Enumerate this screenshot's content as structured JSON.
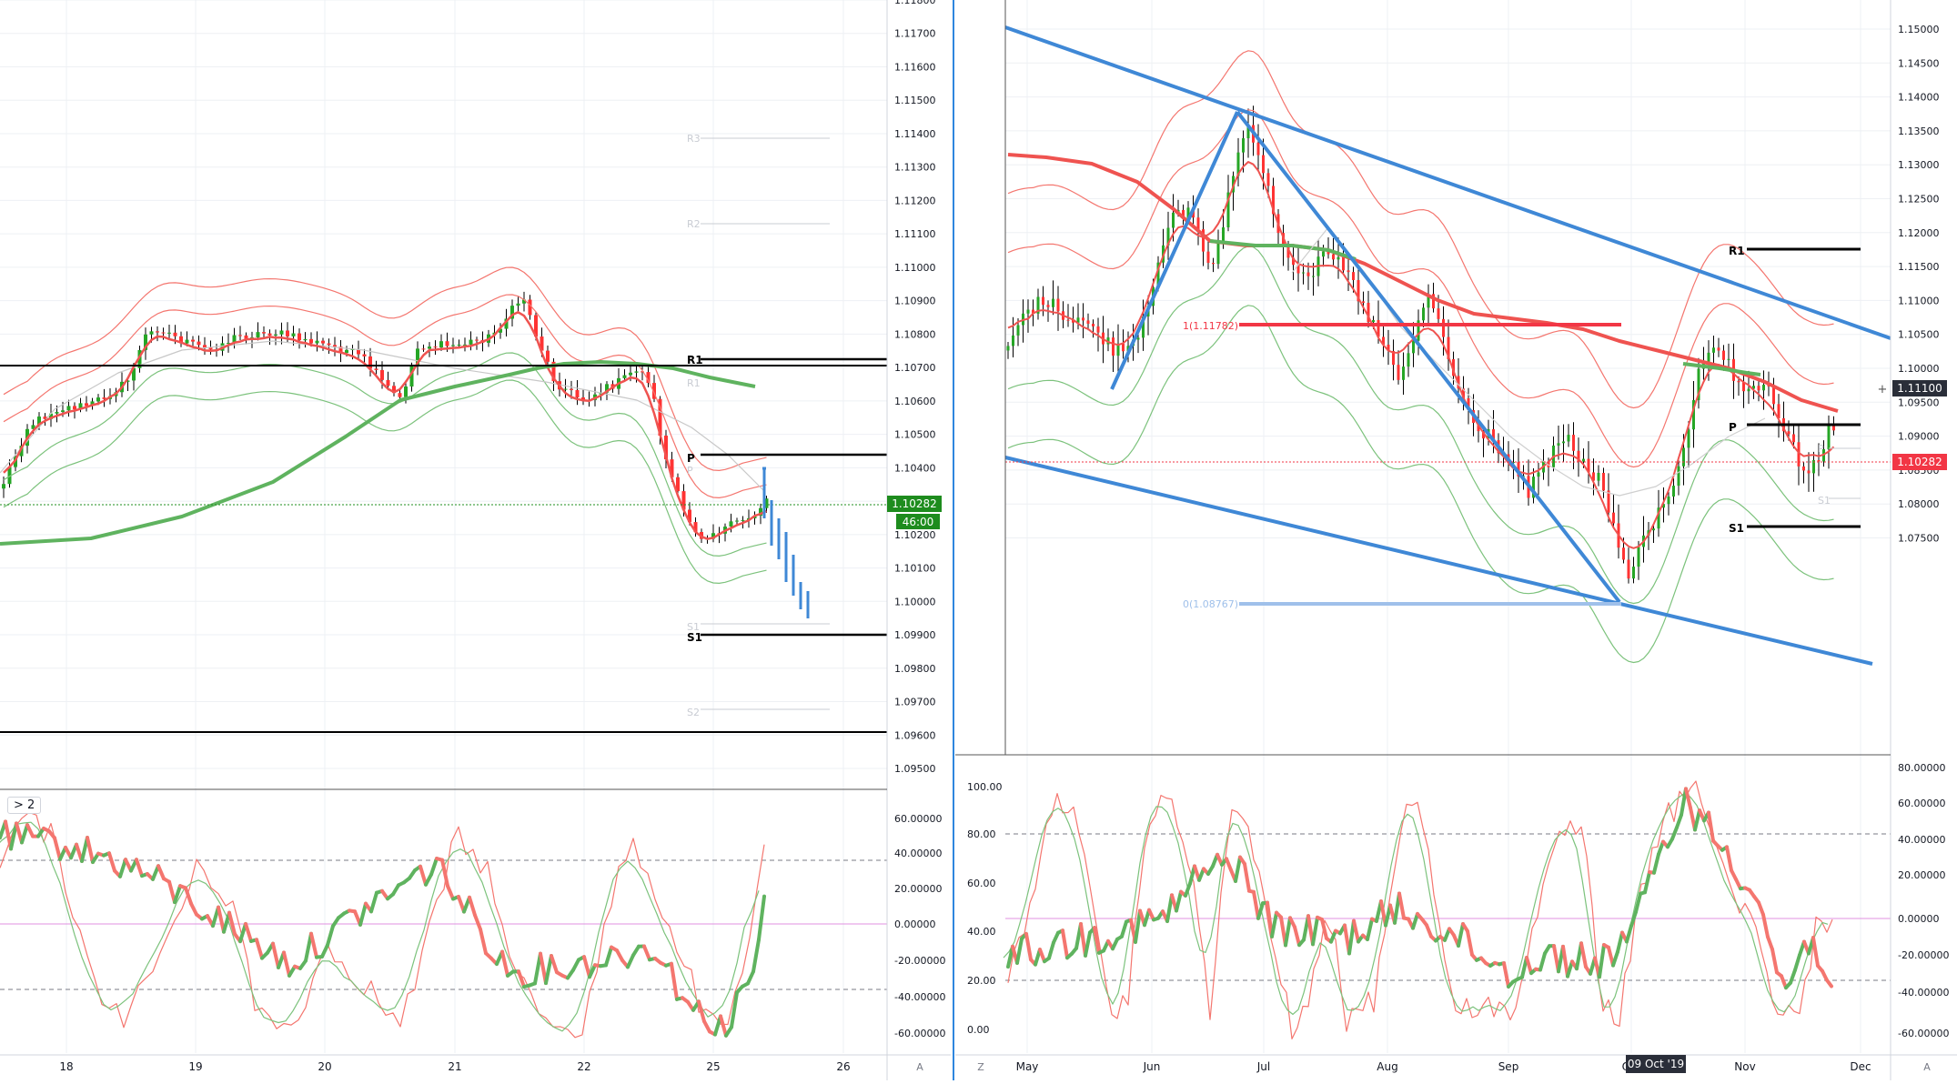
{
  "colors": {
    "background": "#ffffff",
    "grid": "#eef0f4",
    "axis_text": "#131722",
    "up_candle": "#26a626",
    "down_candle": "#ff3333",
    "ma_green": "#5fb35f",
    "ma_red": "#ef5350",
    "band_red": "#f4766f",
    "band_green": "#7cc27c",
    "trendline_blue": "#3f88d6",
    "fib_blue": "#9fc0ea",
    "pivot_black": "#000000",
    "price_label_green": "#1e8c1e",
    "price_label_red": "#f23645",
    "divider_blue": "#2e86de",
    "stoch_zero": "#e090e0",
    "stoch_dash": "#787b86"
  },
  "left_chart": {
    "price_axis_ticks": [
      "1.11800",
      "1.11700",
      "1.11600",
      "1.11500",
      "1.11400",
      "1.11300",
      "1.11200",
      "1.11100",
      "1.11000",
      "1.10900",
      "1.10800",
      "1.10700",
      "1.10600",
      "1.10500",
      "1.10400",
      "1.10300",
      "1.10200",
      "1.10100",
      "1.10000",
      "1.09900",
      "1.09800",
      "1.09700",
      "1.09600",
      "1.09500"
    ],
    "time_axis_ticks": [
      "18",
      "19",
      "20",
      "21",
      "22",
      "25",
      "26"
    ],
    "current_price": "1.10282",
    "countdown": "46:00",
    "pivot_labels": {
      "r3": "R3",
      "r2": "R2",
      "r1": "R1",
      "p": "P",
      "s1": "S1",
      "s2": "S2",
      "faded_r1": "R1",
      "faded_p": "P",
      "faded_s1": "S1"
    },
    "indicator_button": "> 2",
    "stoch_axis_ticks": [
      "60.00000",
      "40.00000",
      "20.00000",
      "0.00000",
      "-20.00000",
      "-40.00000",
      "-60.00000"
    ],
    "axis_corner_label": "A"
  },
  "right_chart": {
    "price_axis_ticks": [
      "1.15000",
      "1.14500",
      "1.14000",
      "1.13500",
      "1.13000",
      "1.12500",
      "1.12000",
      "1.11500",
      "1.11000",
      "1.10500",
      "1.10000",
      "1.09500",
      "1.09000",
      "1.08500",
      "1.08000",
      "1.07500"
    ],
    "time_axis_ticks": [
      "May",
      "Jun",
      "Jul",
      "Aug",
      "Sep",
      "Oct",
      "Nov",
      "Dec"
    ],
    "crosshair_date": "09 Oct '19",
    "crosshair_price": "1.11100",
    "current_price": "1.10282",
    "fib_labels": {
      "level_1": "1(1.11782)",
      "level_0": "0(1.08767)"
    },
    "pivot_labels": {
      "r1": "R1",
      "p": "P",
      "s1": "S1",
      "faded_p": "P",
      "faded_s1": "S1"
    },
    "stoch_left_ticks": [
      "100.00",
      "80.00",
      "60.00",
      "40.00",
      "20.00",
      "0.00"
    ],
    "stoch_right_ticks": [
      "80.00000",
      "60.00000",
      "40.00000",
      "20.00000",
      "0.00000",
      "-20.00000",
      "-40.00000",
      "-60.00000"
    ],
    "axis_corner_left": "Z",
    "axis_corner_right": "A"
  }
}
